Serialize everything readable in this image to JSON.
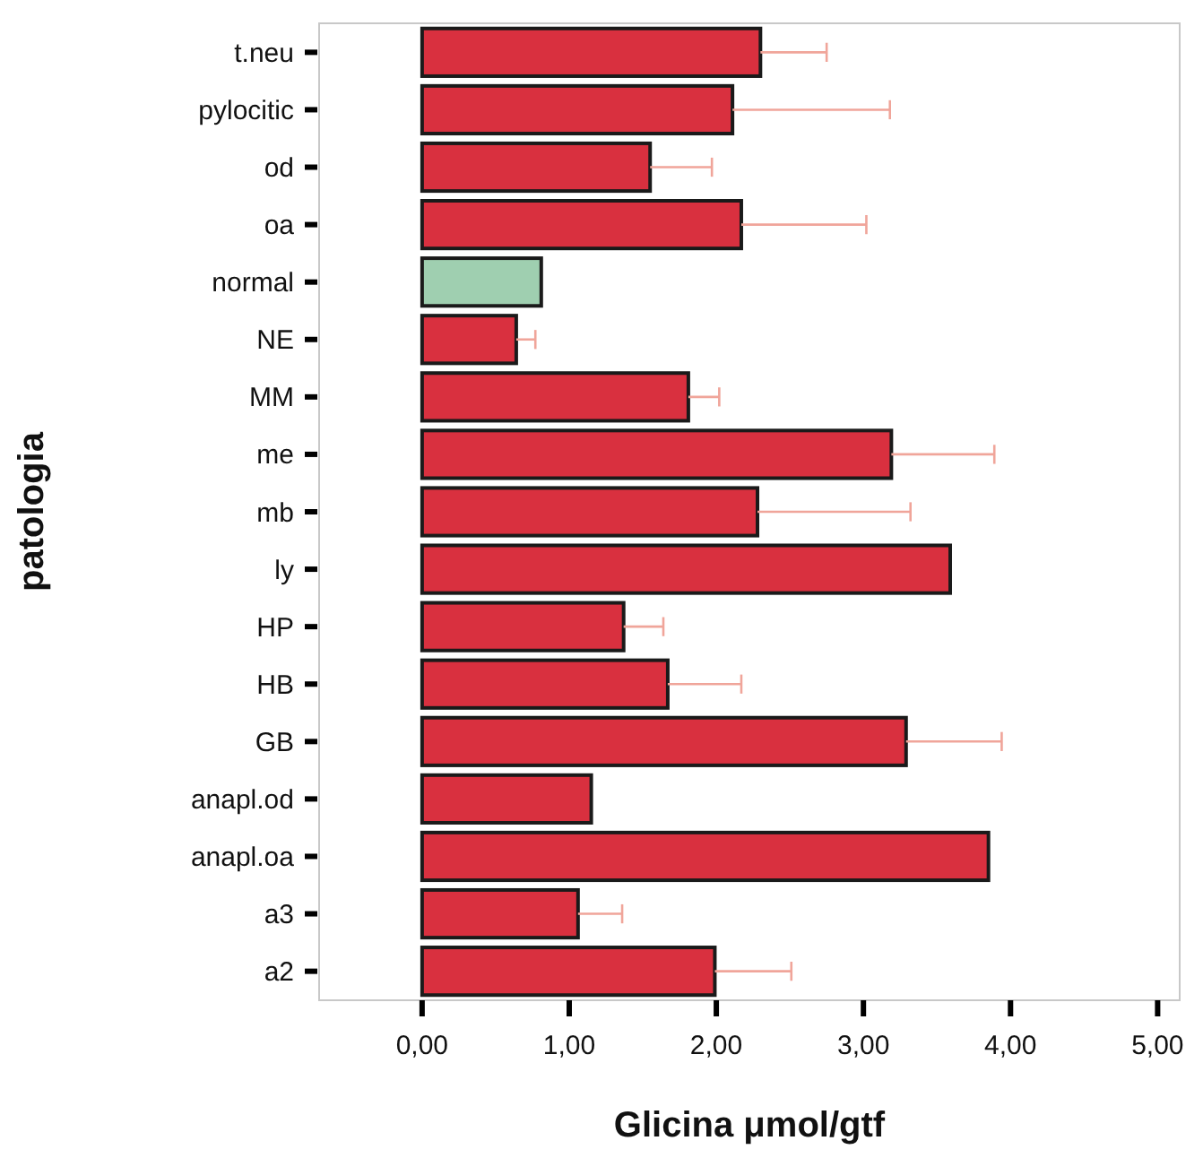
{
  "chart_data": {
    "type": "bar",
    "orientation": "horizontal",
    "xlabel": "Glicina μmol/gtf",
    "ylabel": "patologia",
    "categories": [
      "t.neu",
      "pylocitic",
      "od",
      "oa",
      "normal",
      "NE",
      "MM",
      "me",
      "mb",
      "ly",
      "HP",
      "HB",
      "GB",
      "anapl.od",
      "anapl.oa",
      "a3",
      "a2"
    ],
    "values": [
      2.3,
      2.11,
      1.55,
      2.17,
      0.81,
      0.64,
      1.81,
      3.19,
      2.28,
      3.59,
      1.37,
      1.67,
      3.29,
      1.15,
      3.85,
      1.06,
      1.99
    ],
    "colors": [
      "#d9303f",
      "#d9303f",
      "#d9303f",
      "#d9303f",
      "#9fcfb0",
      "#d9303f",
      "#d9303f",
      "#d9303f",
      "#d9303f",
      "#d9303f",
      "#d9303f",
      "#d9303f",
      "#d9303f",
      "#d9303f",
      "#d9303f",
      "#d9303f",
      "#d9303f"
    ],
    "errors": [
      [
        2.3,
        2.75
      ],
      [
        2.11,
        3.18
      ],
      [
        1.55,
        1.97
      ],
      [
        2.17,
        3.02
      ],
      null,
      [
        0.64,
        0.77
      ],
      [
        1.81,
        2.02
      ],
      [
        3.19,
        3.89
      ],
      [
        2.28,
        3.32
      ],
      null,
      [
        1.37,
        1.64
      ],
      [
        1.67,
        2.17
      ],
      [
        3.29,
        3.94
      ],
      null,
      null,
      [
        1.06,
        1.36
      ],
      [
        1.99,
        2.51
      ]
    ],
    "xlim": [
      -0.7,
      5.15
    ],
    "xticks": [
      {
        "value": 0,
        "label": "0,00"
      },
      {
        "value": 1,
        "label": "1,00"
      },
      {
        "value": 2,
        "label": "2,00"
      },
      {
        "value": 3,
        "label": "3,00"
      },
      {
        "value": 4,
        "label": "4,00"
      },
      {
        "value": 5,
        "label": "5,00"
      }
    ],
    "grid": false
  }
}
